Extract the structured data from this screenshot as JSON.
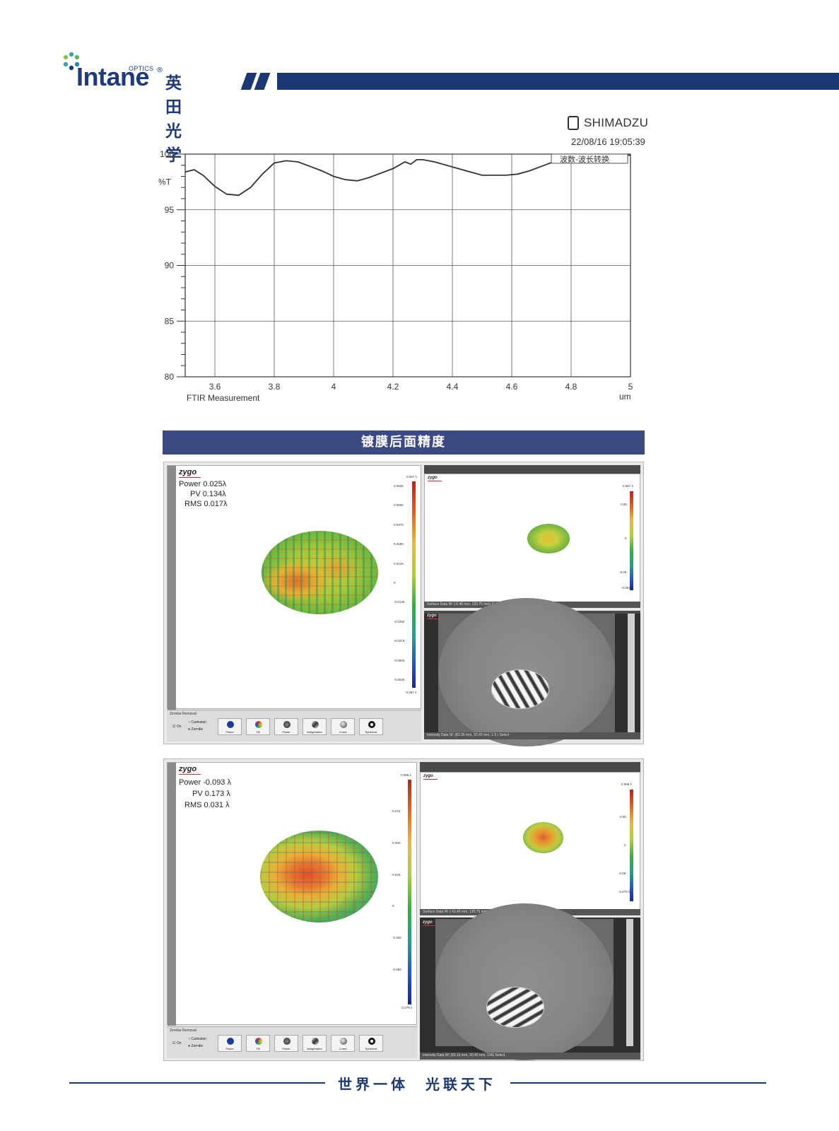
{
  "header": {
    "brand_name": "Intane",
    "brand_optics": "OPTICS",
    "brand_reg": "®",
    "brand_cn": "英田光学"
  },
  "ftir": {
    "vendor": "SHIMADZU",
    "timestamp": "22/08/16 19:05:39",
    "legend_box": "波数-波长转换",
    "caption": "FTIR Measurement",
    "x_unit": "um",
    "y_unit": "%T"
  },
  "chart_data": {
    "type": "line",
    "title": "",
    "xlabel": "um",
    "ylabel": "%T",
    "xlim": [
      3.5,
      5.0
    ],
    "ylim": [
      80,
      100
    ],
    "x_ticks": [
      "3.6",
      "3.8",
      "4",
      "4.2",
      "4.4",
      "4.6",
      "4.8",
      "5"
    ],
    "y_ticks": [
      "100",
      "95",
      "90",
      "85",
      "80"
    ],
    "grid": true,
    "series": [
      {
        "name": "",
        "x": [
          3.5,
          3.53,
          3.56,
          3.6,
          3.64,
          3.68,
          3.72,
          3.76,
          3.8,
          3.84,
          3.88,
          3.92,
          3.96,
          4.0,
          4.04,
          4.08,
          4.12,
          4.16,
          4.2,
          4.22,
          4.24,
          4.26,
          4.28,
          4.3,
          4.34,
          4.38,
          4.42,
          4.46,
          4.5,
          4.54,
          4.58,
          4.62,
          4.66,
          4.7,
          4.74,
          4.78,
          4.82,
          4.86,
          4.9,
          4.94,
          5.0
        ],
        "y": [
          98.4,
          98.6,
          98.1,
          97.1,
          96.4,
          96.3,
          97.0,
          98.2,
          99.2,
          99.4,
          99.3,
          98.9,
          98.5,
          98.0,
          97.7,
          97.6,
          97.9,
          98.3,
          98.7,
          99.0,
          99.3,
          99.1,
          99.5,
          99.5,
          99.3,
          99.0,
          98.7,
          98.4,
          98.1,
          98.1,
          98.1,
          98.2,
          98.5,
          98.9,
          99.3,
          99.6,
          99.8,
          99.9,
          99.9,
          99.9,
          99.9
        ]
      }
    ]
  },
  "section": {
    "title": "镀膜后面精度"
  },
  "panel1": {
    "power": "Power 0.025λ",
    "pv": "PV 0.134λ",
    "rms": "RMS 0.017λ",
    "zygo": "zygo",
    "cb_top": "0.067 λ",
    "cb_ticks": [
      "0.0625",
      "0.0500",
      "0.0375",
      "0.0250",
      "0.0125",
      "0",
      "-0.0125",
      "-0.0250",
      "-0.0375",
      "-0.0500",
      "-0.0625"
    ],
    "cb_bottom": "-0.067 λ",
    "small_cb_top": "0.067 λ",
    "small_cb_ticks": [
      "0.05",
      "0",
      "-0.05"
    ],
    "small_cb_bottom": "-0.067 λ",
    "surface_strip": "Surface Data    W: (-0.46 mm, 120.75 mm)    Select",
    "intensity_strip": "Intensity Data    W: (83.36 mm, 30.40 mm, 1.9 )    Select"
  },
  "panel2": {
    "power": "Power -0.093 λ",
    "pv": "PV  0.173 λ",
    "rms": "RMS  0.031 λ",
    "zygo": "zygo",
    "cb_top": "0.099 λ",
    "cb_ticks": [
      "0.075",
      "0.050",
      "0.025",
      "0",
      "-0.025",
      "-0.050"
    ],
    "cb_bottom": "-0.075 λ",
    "small_cb_top": "0.099 λ",
    "small_cb_ticks": [
      "0.05",
      "0",
      "-0.05"
    ],
    "small_cb_bottom": "-0.075 λ",
    "surface_strip": "Surface Data    W: ( 43.46 mm, 120.75 mm)    Select",
    "intensity_strip": "Intensity Data    W: (83.16 mm, 30.40 mm, 136)    Select"
  },
  "zernike": {
    "title": "Zernike Removal",
    "on_label": "On",
    "opt_cartesian": "Cartesian",
    "opt_zernike": "Zernike",
    "buttons": [
      "Piston",
      "Tilt",
      "Power",
      "Astigmatism",
      "Coma",
      "Spherical"
    ]
  },
  "footer": {
    "left": "世界一体",
    "right": "光联天下"
  },
  "colors": {
    "brand_navy": "#1b3874",
    "section_bar": "#3b4a82"
  }
}
